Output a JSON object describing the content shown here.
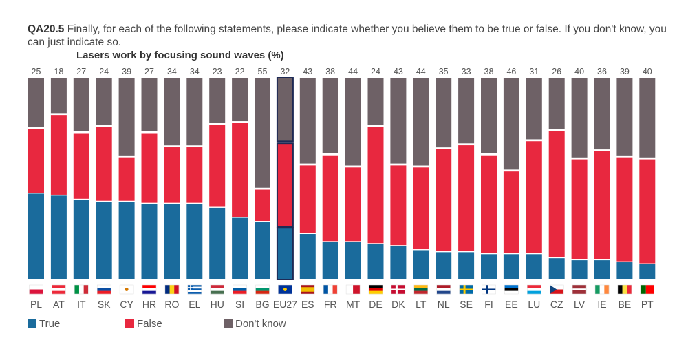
{
  "header": {
    "qcode": "QA20.5",
    "question": "Finally, for each of the following statements, please indicate whether you believe them to be true or false. If you don't know, you can just indicate so."
  },
  "chart_data": {
    "type": "bar",
    "stacked": true,
    "title": "Lasers work by focusing sound waves (%)",
    "unit": "%",
    "categories": [
      "PL",
      "AT",
      "IT",
      "SK",
      "CY",
      "HR",
      "RO",
      "EL",
      "HU",
      "SI",
      "BG",
      "EU27",
      "ES",
      "FR",
      "MT",
      "DE",
      "DK",
      "LT",
      "NL",
      "SE",
      "FI",
      "EE",
      "LU",
      "CZ",
      "LV",
      "IE",
      "BE",
      "PT"
    ],
    "highlight": "EU27",
    "series": [
      {
        "name": "True",
        "color": "#1A6B9C",
        "values": [
          43,
          42,
          40,
          39,
          39,
          38,
          38,
          38,
          36,
          31,
          29,
          26,
          23,
          19,
          19,
          18,
          17,
          15,
          14,
          14,
          13,
          13,
          13,
          11,
          10,
          10,
          9,
          8
        ]
      },
      {
        "name": "False",
        "color": "#E8283F",
        "values": [
          32,
          40,
          33,
          37,
          22,
          35,
          28,
          28,
          41,
          47,
          16,
          42,
          34,
          43,
          37,
          58,
          40,
          41,
          51,
          53,
          49,
          41,
          56,
          63,
          50,
          54,
          52,
          52
        ]
      },
      {
        "name": "Don't know",
        "color": "#6E6166",
        "values": [
          25,
          18,
          27,
          24,
          39,
          27,
          34,
          34,
          23,
          22,
          55,
          32,
          43,
          38,
          44,
          24,
          43,
          44,
          35,
          33,
          38,
          46,
          31,
          26,
          40,
          36,
          39,
          40
        ]
      }
    ],
    "legend": {
      "position": "bottom-left"
    },
    "flag_icons": [
      "poland-flag-icon",
      "austria-flag-icon",
      "italy-flag-icon",
      "slovakia-flag-icon",
      "cyprus-flag-icon",
      "croatia-flag-icon",
      "romania-flag-icon",
      "greece-flag-icon",
      "hungary-flag-icon",
      "slovenia-flag-icon",
      "bulgaria-flag-icon",
      "eu-flag-icon",
      "spain-flag-icon",
      "france-flag-icon",
      "malta-flag-icon",
      "germany-flag-icon",
      "denmark-flag-icon",
      "lithuania-flag-icon",
      "netherlands-flag-icon",
      "sweden-flag-icon",
      "finland-flag-icon",
      "estonia-flag-icon",
      "luxembourg-flag-icon",
      "czechia-flag-icon",
      "latvia-flag-icon",
      "ireland-flag-icon",
      "belgium-flag-icon",
      "portugal-flag-icon"
    ]
  }
}
